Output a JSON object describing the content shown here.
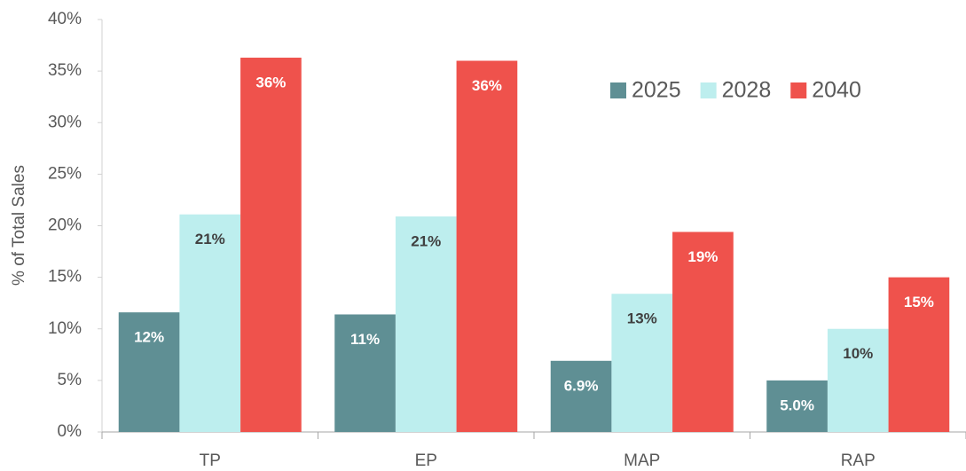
{
  "chart_data": {
    "type": "bar",
    "y_label": "% of Total Sales",
    "categories": [
      "TP",
      "EP",
      "MAP",
      "RAP"
    ],
    "series": [
      {
        "name": "2025",
        "color": "#5f8f94",
        "label_color": "#ffffff",
        "values": [
          11.6,
          11.4,
          6.9,
          5.0
        ],
        "value_labels": [
          "12%",
          "11%",
          "6.9%",
          "5.0%"
        ]
      },
      {
        "name": "2028",
        "color": "#bdeeee",
        "label_color": "#404040",
        "values": [
          21.1,
          20.9,
          13.4,
          10.0
        ],
        "value_labels": [
          "21%",
          "21%",
          "13%",
          "10%"
        ]
      },
      {
        "name": "2040",
        "color": "#ef524c",
        "label_color": "#ffffff",
        "values": [
          36.3,
          36.0,
          19.4,
          15.0
        ],
        "value_labels": [
          "36%",
          "36%",
          "19%",
          "15%"
        ]
      }
    ],
    "ylim": [
      0,
      40
    ],
    "yticks": [
      {
        "value": 0,
        "label": "0%"
      },
      {
        "value": 5,
        "label": "5%"
      },
      {
        "value": 10,
        "label": "10%"
      },
      {
        "value": 15,
        "label": "15%"
      },
      {
        "value": 20,
        "label": "20%"
      },
      {
        "value": 25,
        "label": "25%"
      },
      {
        "value": 30,
        "label": "30%"
      },
      {
        "value": 35,
        "label": "35%"
      },
      {
        "value": 40,
        "label": "40%"
      }
    ],
    "grid": false,
    "legend": "upper right"
  }
}
